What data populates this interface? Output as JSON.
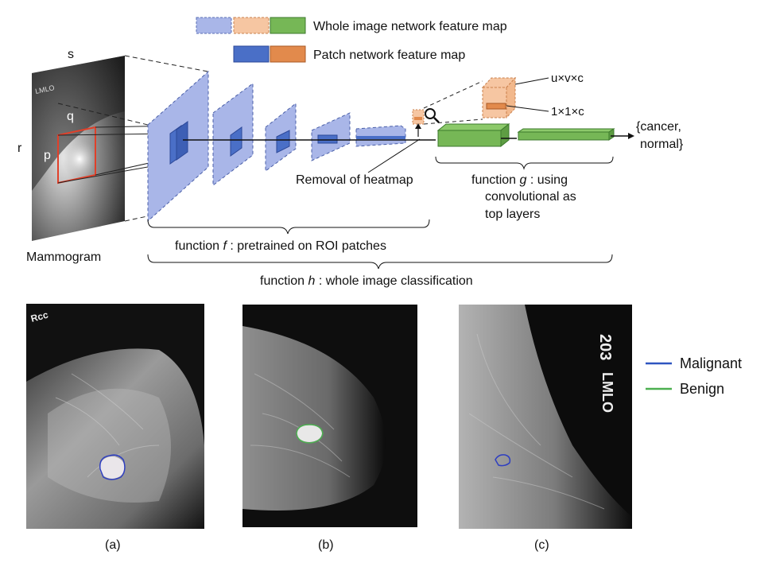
{
  "legend": {
    "whole_map": "Whole image network feature map",
    "patch_map": "Patch network feature map",
    "whole_colors": [
      "#a9b6e8",
      "#f6c6a2",
      "#76b756"
    ],
    "patch_colors": [
      "#4a6fc7",
      "#e28a4c"
    ]
  },
  "mammogram": {
    "label": "Mammogram",
    "dims": {
      "s": "s",
      "r": "r",
      "p": "p",
      "q": "q"
    }
  },
  "pipeline": {
    "dims_label_1": "u×v×c",
    "dims_label_2": "1×1×c",
    "output": [
      "{cancer,",
      "normal}"
    ],
    "removal": "Removal of heatmap",
    "function_g": {
      "prefix": "function ",
      "name": "g",
      "lines": [
        " : using",
        "convolutional as",
        "top layers"
      ]
    },
    "function_f": {
      "prefix": "function ",
      "name": "f",
      "suffix": " : pretrained on ROI patches"
    },
    "function_h": {
      "prefix": "function ",
      "name": "h",
      "suffix": " : whole image classification"
    },
    "icons": [
      "magnifier-icon"
    ]
  },
  "bottom": {
    "captions": [
      "(a)",
      "(b)",
      "(c)"
    ],
    "image_marks": [
      "Rcc",
      "203",
      "LMLO"
    ],
    "legend": [
      {
        "label": "Malignant",
        "color": "#2f55c0"
      },
      {
        "label": "Benign",
        "color": "#4caf50"
      }
    ]
  }
}
